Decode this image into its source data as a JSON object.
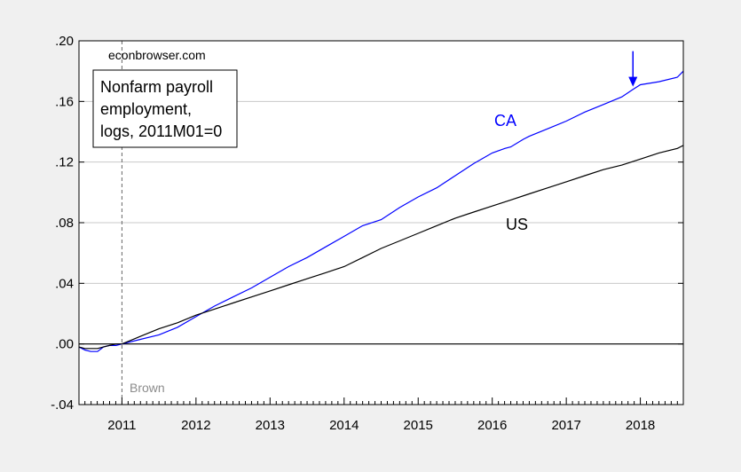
{
  "chart_data": {
    "type": "line",
    "source_note": "econbrowser.com",
    "title_lines": [
      "Nonfarm payroll",
      "employment,",
      "logs, 2011M01=0"
    ],
    "ylim": [
      -0.04,
      0.2
    ],
    "y_ticks": [
      0.2,
      0.16,
      0.12,
      0.08,
      0.04,
      0.0,
      -0.04
    ],
    "y_tick_labels": [
      ".20",
      ".16",
      ".12",
      ".08",
      ".04",
      ".00",
      "-.04"
    ],
    "xlim": [
      2010.42,
      2018.58
    ],
    "x_ticks": [
      2011,
      2012,
      2013,
      2014,
      2015,
      2016,
      2017,
      2018
    ],
    "x_tick_labels": [
      "2011",
      "2012",
      "2013",
      "2014",
      "2015",
      "2016",
      "2017",
      "2018"
    ],
    "grid": "horizontal",
    "vline": {
      "x": 2011.0,
      "label": "Brown"
    },
    "zero_line": 0.0,
    "arrow": {
      "x": 2017.9,
      "series": "CA"
    },
    "series": [
      {
        "name": "CA",
        "color": "#0000ff",
        "x": [
          2010.42,
          2010.5,
          2010.58,
          2010.67,
          2010.75,
          2010.83,
          2010.92,
          2011.0,
          2011.25,
          2011.5,
          2011.75,
          2012.0,
          2012.25,
          2012.5,
          2012.75,
          2013.0,
          2013.25,
          2013.5,
          2013.75,
          2014.0,
          2014.25,
          2014.5,
          2014.75,
          2015.0,
          2015.25,
          2015.5,
          2015.75,
          2016.0,
          2016.17,
          2016.25,
          2016.42,
          2016.5,
          2016.75,
          2017.0,
          2017.25,
          2017.5,
          2017.75,
          2017.9,
          2018.0,
          2018.25,
          2018.5,
          2018.58
        ],
        "values": [
          -0.002,
          -0.004,
          -0.005,
          -0.005,
          -0.002,
          -0.001,
          -0.001,
          0.0,
          0.003,
          0.006,
          0.011,
          0.018,
          0.025,
          0.031,
          0.037,
          0.044,
          0.051,
          0.057,
          0.064,
          0.071,
          0.078,
          0.082,
          0.09,
          0.097,
          0.103,
          0.111,
          0.119,
          0.126,
          0.129,
          0.13,
          0.135,
          0.137,
          0.142,
          0.147,
          0.153,
          0.158,
          0.163,
          0.168,
          0.171,
          0.173,
          0.176,
          0.18
        ]
      },
      {
        "name": "US",
        "color": "#000000",
        "x": [
          2010.42,
          2010.5,
          2010.58,
          2010.67,
          2010.75,
          2010.83,
          2010.92,
          2011.0,
          2011.25,
          2011.5,
          2011.75,
          2012.0,
          2012.25,
          2012.5,
          2012.75,
          2013.0,
          2013.25,
          2013.5,
          2013.75,
          2014.0,
          2014.25,
          2014.5,
          2014.75,
          2015.0,
          2015.25,
          2015.5,
          2015.75,
          2016.0,
          2016.25,
          2016.5,
          2016.75,
          2017.0,
          2017.25,
          2017.5,
          2017.75,
          2018.0,
          2018.25,
          2018.5,
          2018.58
        ],
        "values": [
          -0.002,
          -0.003,
          -0.003,
          -0.003,
          -0.002,
          -0.001,
          0.0,
          0.0,
          0.005,
          0.01,
          0.014,
          0.019,
          0.023,
          0.027,
          0.031,
          0.035,
          0.039,
          0.043,
          0.047,
          0.051,
          0.057,
          0.063,
          0.068,
          0.073,
          0.078,
          0.083,
          0.087,
          0.091,
          0.095,
          0.099,
          0.103,
          0.107,
          0.111,
          0.115,
          0.118,
          0.122,
          0.126,
          0.129,
          0.131
        ]
      }
    ]
  }
}
